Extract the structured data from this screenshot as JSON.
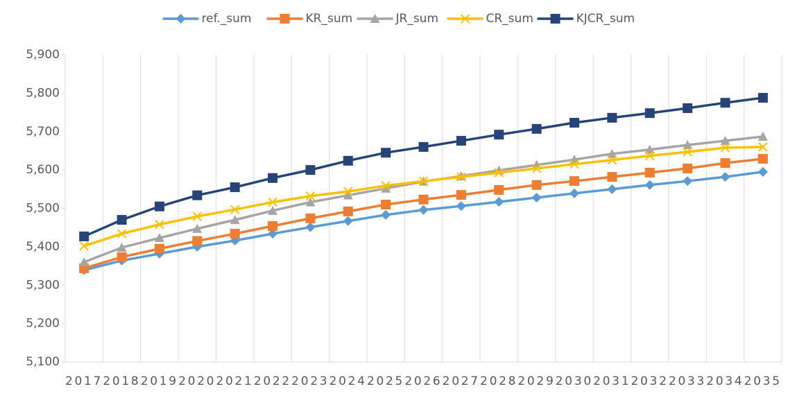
{
  "chart_data": {
    "type": "line",
    "categories": [
      "2017",
      "2018",
      "2019",
      "2020",
      "2021",
      "2022",
      "2023",
      "2024",
      "2025",
      "2026",
      "2027",
      "2028",
      "2029",
      "2030",
      "2031",
      "2032",
      "2033",
      "2034",
      "2035"
    ],
    "series": [
      {
        "name": "ref._sum",
        "color": "#5b9bd5",
        "marker": "diamond",
        "values": [
          5339,
          5364,
          5382,
          5400,
          5416,
          5434,
          5451,
          5467,
          5483,
          5496,
          5506,
          5517,
          5528,
          5539,
          5550,
          5561,
          5571,
          5582,
          5595
        ]
      },
      {
        "name": "KR_sum",
        "color": "#ed7d31",
        "marker": "square",
        "values": [
          5344,
          5373,
          5395,
          5415,
          5434,
          5454,
          5474,
          5492,
          5510,
          5523,
          5535,
          5548,
          5561,
          5571,
          5582,
          5593,
          5604,
          5618,
          5629
        ]
      },
      {
        "name": "JR_sum",
        "color": "#a5a5a5",
        "marker": "triangle",
        "values": [
          5360,
          5398,
          5423,
          5447,
          5470,
          5494,
          5516,
          5534,
          5552,
          5570,
          5584,
          5599,
          5613,
          5627,
          5642,
          5653,
          5665,
          5676,
          5687
        ]
      },
      {
        "name": "CR_sum",
        "color": "#ffc000",
        "marker": "x",
        "values": [
          5402,
          5434,
          5458,
          5479,
          5497,
          5516,
          5532,
          5544,
          5559,
          5571,
          5582,
          5593,
          5604,
          5615,
          5626,
          5637,
          5647,
          5658,
          5660
        ]
      },
      {
        "name": "KJCR_sum",
        "color": "#264478",
        "marker": "square",
        "values": [
          5427,
          5470,
          5505,
          5534,
          5555,
          5579,
          5600,
          5624,
          5645,
          5660,
          5676,
          5692,
          5707,
          5723,
          5736,
          5748,
          5761,
          5775,
          5788
        ]
      }
    ],
    "ylim": [
      5100,
      5900
    ],
    "yticks": [
      {
        "value": 5100,
        "label": "5,100"
      },
      {
        "value": 5200,
        "label": "5,200"
      },
      {
        "value": 5300,
        "label": "5,300"
      },
      {
        "value": 5400,
        "label": "5,400"
      },
      {
        "value": 5500,
        "label": "5,500"
      },
      {
        "value": 5600,
        "label": "5,600"
      },
      {
        "value": 5700,
        "label": "5,700"
      },
      {
        "value": 5800,
        "label": "5,800"
      },
      {
        "value": 5900,
        "label": "5,900"
      }
    ],
    "grid": true,
    "legend": "top"
  }
}
